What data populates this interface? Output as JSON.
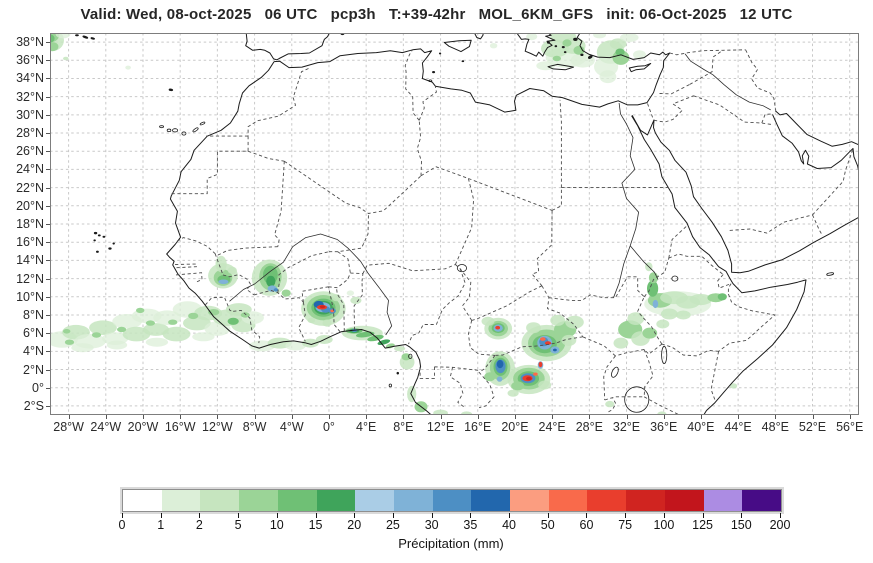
{
  "title": "Valid: Wed, 08-oct-2025   06 UTC   pcp3h   T:+39-42hr   MOL_6KM_GFS   init: 06-Oct-2025   12 UTC",
  "axes": {
    "lon_ticks": [
      {
        "label": "28°W",
        "deg": -28
      },
      {
        "label": "24°W",
        "deg": -24
      },
      {
        "label": "20°W",
        "deg": -20
      },
      {
        "label": "16°W",
        "deg": -16
      },
      {
        "label": "12°W",
        "deg": -12
      },
      {
        "label": "8°W",
        "deg": -8
      },
      {
        "label": "4°W",
        "deg": -4
      },
      {
        "label": "0°",
        "deg": 0
      },
      {
        "label": "4°E",
        "deg": 4
      },
      {
        "label": "8°E",
        "deg": 8
      },
      {
        "label": "12°E",
        "deg": 12
      },
      {
        "label": "16°E",
        "deg": 16
      },
      {
        "label": "20°E",
        "deg": 20
      },
      {
        "label": "24°E",
        "deg": 24
      },
      {
        "label": "28°E",
        "deg": 28
      },
      {
        "label": "32°E",
        "deg": 32
      },
      {
        "label": "36°E",
        "deg": 36
      },
      {
        "label": "40°E",
        "deg": 40
      },
      {
        "label": "44°E",
        "deg": 44
      },
      {
        "label": "48°E",
        "deg": 48
      },
      {
        "label": "52°E",
        "deg": 52
      },
      {
        "label": "56°E",
        "deg": 56
      }
    ],
    "lat_ticks": [
      {
        "label": "38°N",
        "deg": 38
      },
      {
        "label": "36°N",
        "deg": 36
      },
      {
        "label": "34°N",
        "deg": 34
      },
      {
        "label": "32°N",
        "deg": 32
      },
      {
        "label": "30°N",
        "deg": 30
      },
      {
        "label": "28°N",
        "deg": 28
      },
      {
        "label": "26°N",
        "deg": 26
      },
      {
        "label": "24°N",
        "deg": 24
      },
      {
        "label": "22°N",
        "deg": 22
      },
      {
        "label": "20°N",
        "deg": 20
      },
      {
        "label": "18°N",
        "deg": 18
      },
      {
        "label": "16°N",
        "deg": 16
      },
      {
        "label": "14°N",
        "deg": 14
      },
      {
        "label": "12°N",
        "deg": 12
      },
      {
        "label": "10°N",
        "deg": 10
      },
      {
        "label": "8°N",
        "deg": 8
      },
      {
        "label": "6°N",
        "deg": 6
      },
      {
        "label": "4°N",
        "deg": 4
      },
      {
        "label": "2°N",
        "deg": 2
      },
      {
        "label": "0°",
        "deg": 0
      },
      {
        "label": "2°S",
        "deg": -2
      }
    ]
  },
  "colorbar": {
    "label": "Précipitation (mm)",
    "tick_labels": [
      "0",
      "1",
      "2",
      "5",
      "10",
      "15",
      "20",
      "25",
      "30",
      "35",
      "40",
      "50",
      "60",
      "75",
      "100",
      "125",
      "150",
      "200"
    ],
    "segment_colors": [
      "#ffffff",
      "#dcefd8",
      "#c6e5bf",
      "#9bd497",
      "#6fc075",
      "#3fa45b",
      "#aacde6",
      "#7fb2d7",
      "#4d8fc4",
      "#2267ad",
      "#fb9d80",
      "#f96a4b",
      "#e93e2d",
      "#d02420",
      "#c2151c",
      "#ac8ce3",
      "#470c86"
    ]
  },
  "chart_data": {
    "type": "heatmap",
    "variable": "pcp3h",
    "model": "MOL_6KM_GFS",
    "valid": "Wed, 08-oct-2025 06 UTC",
    "lead": "T:+39-42hr",
    "init": "06-Oct-2025 12 UTC",
    "units": "mm",
    "levels_mm": [
      0,
      1,
      2,
      5,
      10,
      15,
      20,
      25,
      30,
      35,
      40,
      50,
      60,
      75,
      100,
      125,
      150,
      200
    ],
    "lon_range": [
      -30,
      57
    ],
    "lat_range": [
      -3,
      39
    ],
    "palette": {
      "g1": "#dcefd8",
      "g2": "#c6e5bf",
      "g3": "#9bd497",
      "g4": "#6fc075",
      "g5": "#3fa45b",
      "b1": "#aacde6",
      "b2": "#7fb2d7",
      "b3": "#4d8fc4",
      "b4": "#2267ad",
      "r1": "#fb9d80",
      "r2": "#f96a4b",
      "r3": "#e93e2d",
      "r4": "#d02420",
      "r5": "#c2151c",
      "p1": "#ac8ce3",
      "p2": "#470c86"
    },
    "precip_cells": [
      [
        -29.8,
        38.2,
        1.3,
        1.2,
        "g2"
      ],
      [
        -29.9,
        38.8,
        0.9,
        0.8,
        "g3"
      ],
      [
        -29.7,
        37.5,
        0.6,
        0.5,
        "g3"
      ],
      [
        -30,
        38.4,
        0.5,
        0.45,
        "g4"
      ],
      [
        -28.6,
        38.9,
        0.8,
        0.5,
        "g1"
      ],
      [
        -28.3,
        36.2,
        0.3,
        0.2,
        "g2"
      ],
      [
        -21.6,
        35.2,
        0.3,
        0.22,
        "g1"
      ],
      [
        25.5,
        36.3,
        2.2,
        1.1,
        "g1"
      ],
      [
        24.3,
        37.3,
        1.5,
        1,
        "g2"
      ],
      [
        26.3,
        37.6,
        1.3,
        0.9,
        "g2"
      ],
      [
        25.2,
        38.6,
        1.4,
        0.7,
        "g2"
      ],
      [
        27.3,
        36,
        1.3,
        0.8,
        "g1"
      ],
      [
        23.3,
        35.4,
        1,
        0.5,
        "g1"
      ],
      [
        26.9,
        37.1,
        0.6,
        0.5,
        "g3"
      ],
      [
        25.6,
        37.9,
        0.5,
        0.4,
        "g3"
      ],
      [
        24.5,
        36.2,
        0.45,
        0.3,
        "g3"
      ],
      [
        17.7,
        37.6,
        0.4,
        0.3,
        "g1"
      ],
      [
        21.8,
        38.6,
        0.6,
        0.4,
        "g1"
      ],
      [
        30.3,
        36.9,
        1.5,
        1.3,
        "g2"
      ],
      [
        29.8,
        35.3,
        1.3,
        1.1,
        "g1"
      ],
      [
        31.4,
        36.3,
        0.9,
        0.8,
        "g3"
      ],
      [
        31.1,
        37.8,
        0.9,
        0.6,
        "g2"
      ],
      [
        30,
        34.2,
        0.9,
        0.7,
        "g1"
      ],
      [
        32.3,
        38.5,
        1,
        0.5,
        "g1"
      ],
      [
        31.3,
        36.9,
        0.5,
        0.4,
        "g4"
      ],
      [
        29.1,
        38.8,
        0.7,
        0.4,
        "g1"
      ],
      [
        33.4,
        36.6,
        0.7,
        0.5,
        "g1"
      ],
      [
        -28.7,
        5.3,
        1.7,
        0.9,
        "g1"
      ],
      [
        -27.2,
        6.1,
        1.5,
        0.8,
        "g2"
      ],
      [
        -25.7,
        5.1,
        1.7,
        0.8,
        "g1"
      ],
      [
        -24.3,
        6.6,
        1.5,
        0.8,
        "g2"
      ],
      [
        -23,
        5.4,
        1.4,
        0.7,
        "g1"
      ],
      [
        -21.7,
        7.3,
        1.6,
        0.8,
        "g1"
      ],
      [
        -20.7,
        5.9,
        1.5,
        0.8,
        "g2"
      ],
      [
        -19.6,
        7.9,
        1.6,
        0.8,
        "g1"
      ],
      [
        -18.6,
        6.4,
        1.4,
        0.7,
        "g2"
      ],
      [
        -17.4,
        7.7,
        1.5,
        0.8,
        "g1"
      ],
      [
        -16.4,
        5.9,
        1.5,
        0.8,
        "g2"
      ],
      [
        -15.2,
        8.6,
        1.6,
        0.9,
        "g1"
      ],
      [
        -14.2,
        7.1,
        1.5,
        0.8,
        "g2"
      ],
      [
        -13,
        8.2,
        1.5,
        0.8,
        "g2"
      ],
      [
        -12,
        6.5,
        1.4,
        0.8,
        "g1"
      ],
      [
        -10.9,
        7.7,
        1.6,
        0.9,
        "g2"
      ],
      [
        -9.7,
        8.6,
        1.4,
        0.7,
        "g2"
      ],
      [
        -9.2,
        6.9,
        1.3,
        0.8,
        "g2"
      ],
      [
        -8.2,
        7.7,
        1.2,
        0.7,
        "g1"
      ],
      [
        -26.5,
        4.4,
        1.2,
        0.5,
        "g1"
      ],
      [
        -22.8,
        4.7,
        1.1,
        0.5,
        "g1"
      ],
      [
        -18.5,
        5,
        1.2,
        0.5,
        "g1"
      ],
      [
        -13.5,
        5.6,
        1.2,
        0.5,
        "g1"
      ],
      [
        -27.9,
        5,
        0.5,
        0.3,
        "g3"
      ],
      [
        -25,
        5.8,
        0.5,
        0.3,
        "g3"
      ],
      [
        -22.3,
        6.4,
        0.5,
        0.3,
        "g3"
      ],
      [
        -19.2,
        7.1,
        0.5,
        0.3,
        "g3"
      ],
      [
        -16.8,
        7.2,
        0.5,
        0.3,
        "g3"
      ],
      [
        -14.6,
        7.9,
        0.55,
        0.35,
        "g3"
      ],
      [
        -12.4,
        8.3,
        0.6,
        0.35,
        "g3"
      ],
      [
        -10.3,
        7.3,
        0.6,
        0.4,
        "g4"
      ],
      [
        -9,
        8,
        0.5,
        0.3,
        "g3"
      ],
      [
        -28.2,
        6.2,
        0.4,
        0.25,
        "g3"
      ],
      [
        -20.3,
        8.5,
        0.45,
        0.3,
        "g3"
      ],
      [
        -7.2,
        4.6,
        1.4,
        0.6,
        "g1"
      ],
      [
        -5.3,
        4.9,
        1.3,
        0.6,
        "g2"
      ],
      [
        -3.6,
        4.6,
        1.1,
        0.5,
        "g1"
      ],
      [
        -2,
        4.9,
        0.9,
        0.5,
        "g2"
      ],
      [
        -0.5,
        5.3,
        0.9,
        0.5,
        "g2"
      ],
      [
        -11.4,
        12.3,
        1.6,
        1.4,
        "g2"
      ],
      [
        -11.4,
        12.1,
        1,
        0.9,
        "g3"
      ],
      [
        -11.3,
        11.9,
        0.7,
        0.5,
        "g4"
      ],
      [
        -11.35,
        11.65,
        0.55,
        0.25,
        "b2"
      ],
      [
        -11.6,
        13.6,
        0.6,
        0.9,
        "g2"
      ],
      [
        -10.4,
        12.9,
        0.5,
        0.4,
        "g2"
      ],
      [
        -6.4,
        12.1,
        1.9,
        2,
        "g2"
      ],
      [
        -6.3,
        12.2,
        1.2,
        1.5,
        "g3"
      ],
      [
        -6.3,
        12.4,
        0.8,
        1,
        "g4"
      ],
      [
        -6.25,
        11.7,
        0.5,
        0.6,
        "g5"
      ],
      [
        -6.1,
        10.9,
        0.5,
        0.35,
        "b2"
      ],
      [
        -5.7,
        10.75,
        0.25,
        0.2,
        "b3"
      ],
      [
        -4.6,
        10.4,
        0.5,
        0.4,
        "g3"
      ],
      [
        -0.6,
        8.7,
        2.4,
        1.9,
        "g2"
      ],
      [
        -0.6,
        8.8,
        1.8,
        1.4,
        "g3"
      ],
      [
        -0.6,
        8.8,
        1.3,
        1,
        "g4"
      ],
      [
        -0.6,
        8.8,
        1,
        0.75,
        "g5"
      ],
      [
        -0.65,
        8.85,
        0.8,
        0.55,
        "b2"
      ],
      [
        -1.1,
        9.15,
        0.55,
        0.4,
        "b4"
      ],
      [
        -0.35,
        8.6,
        0.5,
        0.35,
        "b3"
      ],
      [
        -0.75,
        8.85,
        0.55,
        0.25,
        "r3"
      ],
      [
        -0.7,
        8.9,
        0.3,
        0.15,
        "r4"
      ],
      [
        0.35,
        8.45,
        0.4,
        0.3,
        "b3"
      ],
      [
        0.35,
        8.45,
        0.2,
        0.15,
        "r2"
      ],
      [
        -0.2,
        7.1,
        0.5,
        0.4,
        "g2"
      ],
      [
        -1.9,
        7.4,
        0.4,
        0.3,
        "g2"
      ],
      [
        0.8,
        9.9,
        0.5,
        0.4,
        "g2"
      ],
      [
        2.9,
        9.6,
        0.6,
        0.4,
        "g2"
      ],
      [
        2.3,
        10.4,
        0.4,
        0.3,
        "g1"
      ],
      [
        3.6,
        6,
        2.2,
        0.8,
        "g2"
      ],
      [
        2.7,
        6.25,
        0.9,
        0.3,
        "g4"
      ],
      [
        2.7,
        6.25,
        0.55,
        0.22,
        "g5"
      ],
      [
        2.75,
        6.3,
        0.3,
        0.18,
        "b3"
      ],
      [
        3.9,
        5.85,
        1,
        0.3,
        "g4",
        -8
      ],
      [
        5,
        5.45,
        0.9,
        0.3,
        "g4",
        -12
      ],
      [
        5.9,
        5,
        0.7,
        0.25,
        "g5",
        -15
      ],
      [
        6.6,
        4.6,
        0.5,
        0.25,
        "g3",
        -15
      ],
      [
        7.6,
        4.3,
        0.6,
        0.3,
        "g2"
      ],
      [
        8.4,
        2.8,
        0.8,
        0.8,
        "g2"
      ],
      [
        8.3,
        3.4,
        0.5,
        0.4,
        "g3"
      ],
      [
        8.9,
        -0.7,
        0.5,
        0.9,
        "g2"
      ],
      [
        9.9,
        -2.1,
        0.7,
        0.6,
        "g3"
      ],
      [
        12,
        -2.8,
        0.8,
        0.4,
        "g2"
      ],
      [
        14.8,
        -2.9,
        0.6,
        0.3,
        "g2"
      ],
      [
        18.2,
        6.5,
        1.5,
        1.2,
        "g2"
      ],
      [
        18.2,
        6.5,
        1.05,
        0.85,
        "g3"
      ],
      [
        18.2,
        6.55,
        0.7,
        0.55,
        "g4"
      ],
      [
        18.2,
        6.55,
        0.5,
        0.4,
        "b2"
      ],
      [
        18.15,
        6.6,
        0.26,
        0.2,
        "r3"
      ],
      [
        17.1,
        7.3,
        0.7,
        0.5,
        "g2"
      ],
      [
        23.4,
        4.9,
        2.7,
        2,
        "g2"
      ],
      [
        23.4,
        4.9,
        2,
        1.5,
        "g3"
      ],
      [
        23.2,
        4.8,
        1.3,
        1,
        "g4"
      ],
      [
        23.2,
        4.95,
        0.8,
        0.75,
        "b2"
      ],
      [
        23.1,
        5.05,
        0.5,
        0.5,
        "b3"
      ],
      [
        23,
        5.35,
        0.3,
        0.2,
        "r2"
      ],
      [
        23.55,
        4.9,
        0.33,
        0.2,
        "r3"
      ],
      [
        24.3,
        4.15,
        0.5,
        0.4,
        "b2"
      ],
      [
        24.3,
        4.15,
        0.2,
        0.15,
        "b4"
      ],
      [
        25.4,
        6.4,
        1.2,
        0.9,
        "g3"
      ],
      [
        26.4,
        7.2,
        1,
        0.7,
        "g2"
      ],
      [
        24.6,
        7.4,
        0.8,
        0.6,
        "g2"
      ],
      [
        22,
        6.6,
        0.8,
        0.6,
        "g2"
      ],
      [
        25.8,
        5.2,
        0.8,
        0.6,
        "g2"
      ],
      [
        18.4,
        2.1,
        1.6,
        1.9,
        "g2"
      ],
      [
        18.4,
        2.2,
        1.1,
        1.4,
        "g3"
      ],
      [
        18.45,
        2.3,
        0.75,
        1,
        "g4"
      ],
      [
        18.45,
        2.35,
        0.55,
        0.75,
        "b3"
      ],
      [
        18.4,
        2.6,
        0.35,
        0.45,
        "b4"
      ],
      [
        18.35,
        0.95,
        0.3,
        0.3,
        "b2"
      ],
      [
        17.3,
        1.2,
        0.6,
        0.5,
        "g3"
      ],
      [
        21.5,
        0.9,
        2.3,
        1.6,
        "g2"
      ],
      [
        21.5,
        1,
        1.7,
        1.2,
        "g3"
      ],
      [
        21.45,
        1,
        1.15,
        0.8,
        "g4"
      ],
      [
        21.4,
        1.05,
        0.8,
        0.55,
        "b3"
      ],
      [
        21.35,
        1.05,
        0.55,
        0.33,
        "r3"
      ],
      [
        21.5,
        1,
        0.3,
        0.2,
        "r4"
      ],
      [
        22.2,
        1.5,
        0.25,
        0.18,
        "r2"
      ],
      [
        22.75,
        2.5,
        0.3,
        0.42,
        "b2"
      ],
      [
        22.75,
        2.55,
        0.2,
        0.3,
        "r3"
      ],
      [
        20.3,
        0.2,
        0.7,
        0.5,
        "g3"
      ],
      [
        23.2,
        0.3,
        0.7,
        0.5,
        "g2"
      ],
      [
        19.8,
        -0.6,
        0.6,
        0.4,
        "g2"
      ],
      [
        30.2,
        -1.8,
        0.5,
        0.35,
        "g2"
      ],
      [
        32.4,
        6.4,
        1.3,
        1,
        "g3"
      ],
      [
        33.5,
        5.4,
        1,
        0.8,
        "g2"
      ],
      [
        31.4,
        4.9,
        0.8,
        0.6,
        "g2"
      ],
      [
        33,
        7.6,
        0.9,
        0.7,
        "g2"
      ],
      [
        34.5,
        6,
        0.8,
        0.6,
        "g3"
      ],
      [
        37.5,
        9.2,
        3.6,
        1.4,
        "g1"
      ],
      [
        35.6,
        9.6,
        1.3,
        0.8,
        "g3"
      ],
      [
        37.1,
        9.9,
        1.5,
        0.7,
        "g2"
      ],
      [
        38.6,
        9.4,
        1.3,
        0.7,
        "g2"
      ],
      [
        40,
        9.7,
        1.2,
        0.6,
        "g2"
      ],
      [
        41.6,
        9.9,
        0.9,
        0.5,
        "g3"
      ],
      [
        42.3,
        10,
        0.5,
        0.4,
        "g4"
      ],
      [
        34.8,
        10.9,
        0.6,
        0.9,
        "g4"
      ],
      [
        34.9,
        12.1,
        0.5,
        0.6,
        "g3"
      ],
      [
        34.4,
        13.3,
        0.4,
        0.5,
        "g2"
      ],
      [
        35.1,
        9.2,
        0.3,
        0.45,
        "b2"
      ],
      [
        36.6,
        8.1,
        0.9,
        0.6,
        "g2"
      ],
      [
        38.1,
        8,
        0.8,
        0.5,
        "g2"
      ],
      [
        35.9,
        7,
        0.7,
        0.5,
        "g2"
      ],
      [
        43.5,
        0.2,
        0.4,
        0.3,
        "g2"
      ],
      [
        35.8,
        -2.9,
        0.5,
        0.3,
        "g2"
      ]
    ]
  }
}
